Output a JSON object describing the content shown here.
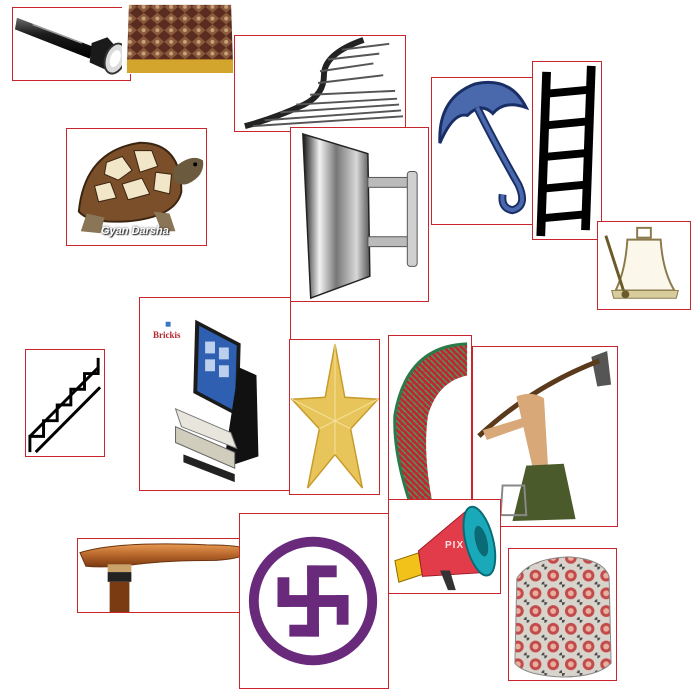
{
  "images": [
    {
      "name": "flashlight-image",
      "icon": "flashlight-icon"
    },
    {
      "name": "embroidered-cap-image",
      "icon": "cap-icon"
    },
    {
      "name": "spiral-staircase-image",
      "icon": "staircase-icon"
    },
    {
      "name": "umbrella-image",
      "icon": "umbrella-icon"
    },
    {
      "name": "ladder-image",
      "icon": "ladder-icon"
    },
    {
      "name": "tortoise-image",
      "icon": "tortoise-icon",
      "watermark": "Gyan Darsha"
    },
    {
      "name": "flat-iron-image",
      "icon": "iron-icon"
    },
    {
      "name": "bell-image",
      "icon": "bell-icon"
    },
    {
      "name": "stairs-image",
      "icon": "stairs-icon"
    },
    {
      "name": "computer-kiosk-image",
      "icon": "computer-icon",
      "brand": "Brickis"
    },
    {
      "name": "star-image",
      "icon": "star-icon"
    },
    {
      "name": "fan-image",
      "icon": "fan-icon"
    },
    {
      "name": "farmer-hoe-image",
      "icon": "hoe-icon"
    },
    {
      "name": "walking-stick-image",
      "icon": "walking-stick-icon"
    },
    {
      "name": "swastika-image",
      "icon": "swastika-icon"
    },
    {
      "name": "megaphone-image",
      "icon": "megaphone-icon",
      "watermark": "PIX"
    },
    {
      "name": "pouf-image",
      "icon": "pouf-icon"
    }
  ],
  "colors": {
    "tile_border": "#c8262c",
    "umbrella_blue": "#4a69ad",
    "star_gold": "#e8c55a",
    "swastika_purple": "#6a2a7c",
    "megaphone_red": "#e23c4a",
    "megaphone_teal": "#1aa9b9",
    "walking_stick_brown": "#b5652a"
  }
}
